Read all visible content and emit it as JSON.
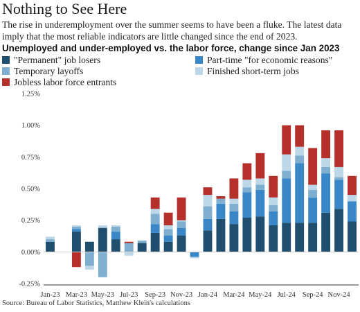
{
  "title": "Nothing to See Here",
  "subtitle": "The rise in underemployment over the summer seems to have been a fluke. The latest data imply that the most reliable indicators are little changed since the end of 2023.",
  "chart_title": "Unemployed and under-employed vs. the labor force, change since Jan 2023",
  "source": "Source: Bureau of Labor Statistics, Matthew Klein's calculations",
  "chart_data": {
    "type": "bar",
    "stacked": true,
    "title": "Unemployed and under-employed vs. the labor force, change since Jan 2023",
    "x": [
      "Jan-23",
      "Feb-23",
      "Mar-23",
      "Apr-23",
      "May-23",
      "Jun-23",
      "Jul-23",
      "Aug-23",
      "Sep-23",
      "Oct-23",
      "Nov-23",
      "Dec-23",
      "Jan-24",
      "Feb-24",
      "Mar-24",
      "Apr-24",
      "May-24",
      "Jun-24",
      "Jul-24",
      "Aug-24",
      "Sep-24",
      "Oct-24",
      "Nov-24",
      "Dec-24"
    ],
    "x_tick_labels": [
      "Jan-23",
      "Mar-23",
      "May-23",
      "Jul-23",
      "Sep-23",
      "Nov-23",
      "Jan-24",
      "Mar-24",
      "May-24",
      "Jul-24",
      "Sep-24",
      "Nov-24"
    ],
    "ylim": [
      -0.25,
      1.25
    ],
    "y_ticks": [
      -0.25,
      0,
      0.25,
      0.5,
      0.75,
      1.0,
      1.25
    ],
    "y_tick_labels": [
      "-0.25%",
      "0.00%",
      "0.25%",
      "0.50%",
      "0.75%",
      "1.00%",
      "1.25%"
    ],
    "grid": false,
    "legend_position": "top",
    "series": [
      {
        "name": "\"Permanent\" job losers",
        "color": "#1f4e6e",
        "values": [
          0.08,
          0.0,
          0.16,
          0.08,
          0.19,
          0.1,
          0.0,
          0.07,
          0.15,
          0.08,
          0.13,
          0.0,
          0.17,
          0.26,
          0.22,
          0.27,
          0.28,
          0.21,
          0.23,
          0.23,
          0.23,
          0.31,
          0.34,
          0.24
        ]
      },
      {
        "name": "Part-time \"for economic reasons\"",
        "color": "#3a87c8",
        "values": [
          0.0,
          0.0,
          0.02,
          0.0,
          0.0,
          0.06,
          0.0,
          0.0,
          0.07,
          0.05,
          0.06,
          -0.04,
          0.09,
          0.12,
          0.1,
          0.2,
          0.21,
          0.11,
          0.35,
          0.47,
          0.2,
          0.31,
          0.23,
          0.16
        ]
      },
      {
        "name": "Temporary layoffs",
        "color": "#7eafd0",
        "values": [
          0.02,
          0.0,
          0.02,
          -0.11,
          -0.2,
          0.04,
          0.07,
          0.02,
          0.08,
          0.05,
          0.05,
          0.0,
          0.1,
          0.04,
          0.06,
          0.04,
          0.04,
          0.05,
          0.06,
          0.06,
          0.06,
          0.05,
          0.02,
          0.0
        ]
      },
      {
        "name": "Finished short-term jobs",
        "color": "#bcd8e8",
        "values": [
          0.02,
          0.0,
          0.01,
          -0.03,
          0.02,
          0.01,
          -0.03,
          0.0,
          0.04,
          0.03,
          0.01,
          -0.01,
          0.09,
          0.0,
          0.04,
          0.06,
          0.05,
          0.06,
          0.13,
          0.07,
          0.04,
          0.07,
          0.08,
          0.05
        ]
      },
      {
        "name": "Jobless labor force entrants",
        "color": "#b5302b",
        "values": [
          0.0,
          0.0,
          -0.12,
          0.0,
          0.0,
          0.0,
          0.01,
          0.0,
          0.09,
          0.1,
          0.18,
          0.0,
          0.06,
          0.02,
          0.16,
          0.13,
          0.2,
          0.17,
          0.23,
          0.17,
          0.29,
          0.22,
          0.29,
          0.15
        ]
      }
    ]
  }
}
